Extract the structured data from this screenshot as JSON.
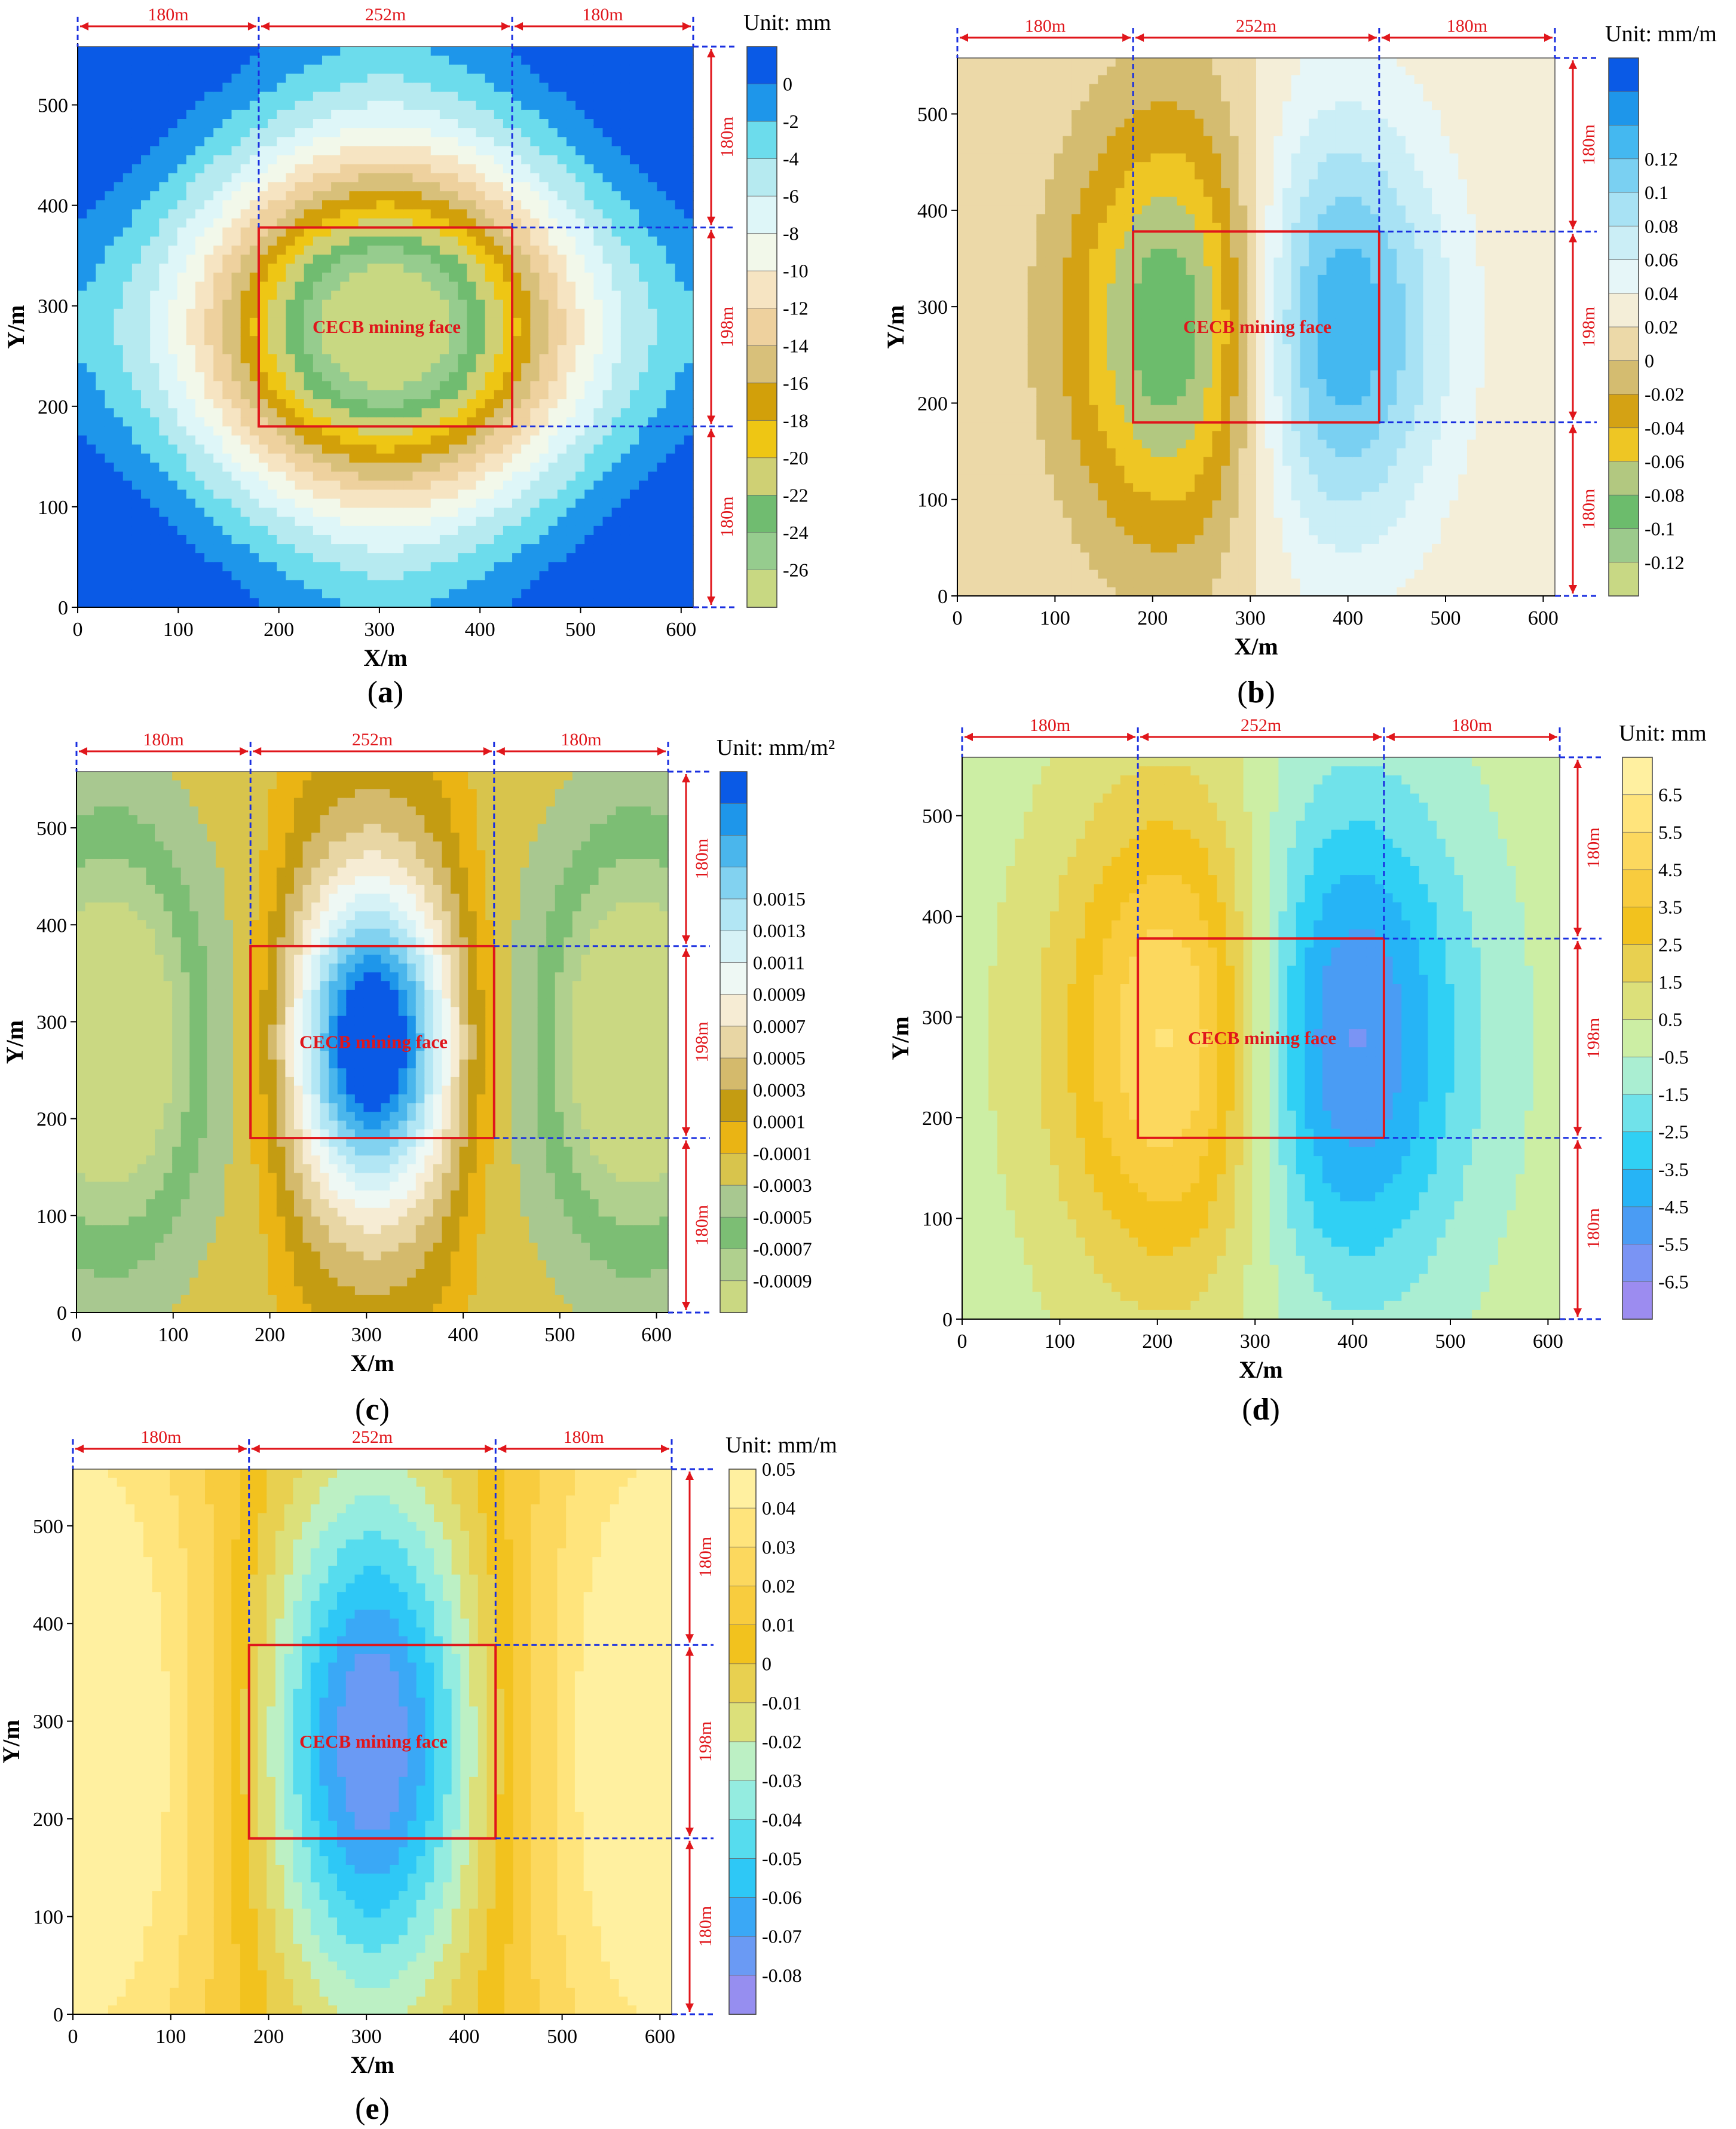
{
  "chart_data": [
    {
      "id": "a",
      "type": "heatmap",
      "caption": "a",
      "unit_label": "Unit: mm",
      "xlabel": "X/m",
      "ylabel": "Y/m",
      "xlim": [
        0,
        612
      ],
      "ylim": [
        0,
        558
      ],
      "xticks": [
        0,
        100,
        200,
        300,
        400,
        500,
        600
      ],
      "yticks": [
        0,
        100,
        200,
        300,
        400,
        500
      ],
      "mining_face": {
        "label": "CECB mining face",
        "x": [
          180,
          432
        ],
        "y": [
          180,
          378
        ]
      },
      "dims_top": [
        "180m",
        "252m",
        "180m"
      ],
      "dims_right": [
        "180m",
        "198m",
        "180m"
      ],
      "colorbar": {
        "labels": [
          "0",
          "-2",
          "-4",
          "-6",
          "-8",
          "-10",
          "-12",
          "-14",
          "-16",
          "-18",
          "-20",
          "-22",
          "-24",
          "-26"
        ],
        "colors": [
          "#0a5ae6",
          "#1e96ea",
          "#6cdcec",
          "#b6eaf0",
          "#def6f8",
          "#f2f8ea",
          "#f6e4c2",
          "#eed19e",
          "#d8c07a",
          "#d2a00a",
          "#eec614",
          "#cfd074",
          "#70bc70",
          "#96cc8e",
          "#c8d882"
        ]
      },
      "field": {
        "kind": "bowl",
        "min": -26,
        "max": 1,
        "cx": 306,
        "cy": 279,
        "rx": 200,
        "ry": 170
      }
    },
    {
      "id": "b",
      "type": "heatmap",
      "caption": "b",
      "unit_label": "Unit: mm/m",
      "xlabel": "X/m",
      "ylabel": "Y/m",
      "xlim": [
        0,
        612
      ],
      "ylim": [
        0,
        558
      ],
      "xticks": [
        0,
        100,
        200,
        300,
        400,
        500,
        600
      ],
      "yticks": [
        0,
        100,
        200,
        300,
        400,
        500
      ],
      "mining_face": {
        "label": "CECB mining face",
        "x": [
          180,
          432
        ],
        "y": [
          180,
          378
        ]
      },
      "dims_top": [
        "180m",
        "252m",
        "180m"
      ],
      "dims_right": [
        "180m",
        "198m",
        "180m"
      ],
      "colorbar": {
        "labels": [
          "0.12",
          "0.1",
          "0.08",
          "0.06",
          "0.04",
          "0.02",
          "0",
          "-0.02",
          "-0.04",
          "-0.06",
          "-0.08",
          "-0.1",
          "-0.12"
        ],
        "colors": [
          "#0a5ae6",
          "#1e96ea",
          "#44b8f0",
          "#7ad0f2",
          "#a8e2f4",
          "#cbeef6",
          "#e6f6f8",
          "#f4eed8",
          "#ecd9a8",
          "#d4bc70",
          "#d4a214",
          "#eec624",
          "#b2c880",
          "#6cbc6c",
          "#9cca8c",
          "#c8d884"
        ]
      },
      "field": {
        "kind": "dipole",
        "min": -0.12,
        "max": 0.12,
        "cx": 306,
        "cy": 279,
        "sx": 100,
        "sy": 160,
        "d": 130
      }
    },
    {
      "id": "c",
      "type": "heatmap",
      "caption": "c",
      "unit_label": "Unit: mm/m²",
      "xlabel": "X/m",
      "ylabel": "Y/m",
      "xlim": [
        0,
        612
      ],
      "ylim": [
        0,
        558
      ],
      "xticks": [
        0,
        100,
        200,
        300,
        400,
        500,
        600
      ],
      "yticks": [
        0,
        100,
        200,
        300,
        400,
        500
      ],
      "mining_face": {
        "label": "CECB mining face",
        "x": [
          180,
          432
        ],
        "y": [
          180,
          378
        ]
      },
      "dims_top": [
        "180m",
        "252m",
        "180m"
      ],
      "dims_right": [
        "180m",
        "198m",
        "180m"
      ],
      "colorbar": {
        "labels": [
          "0.0015",
          "0.0013",
          "0.0011",
          "0.0009",
          "0.0007",
          "0.0005",
          "0.0003",
          "0.0001",
          "-0.0001",
          "-0.0003",
          "-0.0005",
          "-0.0007",
          "-0.0009"
        ],
        "colors": [
          "#0a5ae6",
          "#1e96ea",
          "#4ab6ec",
          "#82d2f0",
          "#b2e6f4",
          "#d6f2f6",
          "#eef8f4",
          "#f6ecd4",
          "#e8d6a4",
          "#d4ba6c",
          "#c49c12",
          "#eab414",
          "#d8c44c",
          "#a8c890",
          "#7cbe74",
          "#b0d08e",
          "#cad882"
        ]
      },
      "field": {
        "kind": "curvature",
        "min": -0.0009,
        "max": 0.0017,
        "cx": 306,
        "cy": 279
      }
    },
    {
      "id": "d",
      "type": "heatmap",
      "caption": "d",
      "unit_label": "Unit: mm",
      "xlabel": "X/m",
      "ylabel": "Y/m",
      "xlim": [
        0,
        612
      ],
      "ylim": [
        0,
        558
      ],
      "xticks": [
        0,
        100,
        200,
        300,
        400,
        500,
        600
      ],
      "yticks": [
        0,
        100,
        200,
        300,
        400,
        500
      ],
      "mining_face": {
        "label": "CECB mining face",
        "x": [
          180,
          432
        ],
        "y": [
          180,
          378
        ]
      },
      "dims_top": [
        "180m",
        "252m",
        "180m"
      ],
      "dims_right": [
        "180m",
        "198m",
        "180m"
      ],
      "colorbar": {
        "labels": [
          "6.5",
          "5.5",
          "4.5",
          "3.5",
          "2.5",
          "1.5",
          "0.5",
          "-0.5",
          "-1.5",
          "-2.5",
          "-3.5",
          "-4.5",
          "-5.5",
          "-6.5"
        ],
        "colors": [
          "#fff0a0",
          "#ffe47c",
          "#fcd85e",
          "#f8cc3e",
          "#f2c21e",
          "#e8d050",
          "#dce07a",
          "#cceea4",
          "#aaeed2",
          "#70e2ea",
          "#30d0f4",
          "#26b4f6",
          "#4a9cf4",
          "#7a94f4",
          "#9c8cf0"
        ]
      },
      "field": {
        "kind": "dipole",
        "min": -6.5,
        "max": 6.5,
        "cx": 306,
        "cy": 279,
        "sx": 110,
        "sy": 170,
        "d": 135,
        "invert": true
      }
    },
    {
      "id": "e",
      "type": "heatmap",
      "caption": "e",
      "unit_label": "Unit: mm/m",
      "xlabel": "X/m",
      "ylabel": "Y/m",
      "xlim": [
        0,
        612
      ],
      "ylim": [
        0,
        558
      ],
      "xticks": [
        0,
        100,
        200,
        300,
        400,
        500,
        600
      ],
      "yticks": [
        0,
        100,
        200,
        300,
        400,
        500
      ],
      "mining_face": {
        "label": "CECB mining face",
        "x": [
          180,
          432
        ],
        "y": [
          180,
          378
        ]
      },
      "dims_top": [
        "180m",
        "252m",
        "180m"
      ],
      "dims_right": [
        "180m",
        "198m",
        "180m"
      ],
      "colorbar": {
        "labels": [
          "0.05",
          "0.04",
          "0.03",
          "0.02",
          "0.01",
          "0",
          "-0.01",
          "-0.02",
          "-0.03",
          "-0.04",
          "-0.05",
          "-0.06",
          "-0.07",
          "-0.08"
        ],
        "colors": [
          "#fff0a0",
          "#ffe47c",
          "#fcd85e",
          "#f8cc3e",
          "#f2c21e",
          "#e8d050",
          "#dce07a",
          "#bcf0c4",
          "#94ece0",
          "#56dcee",
          "#2ec8f6",
          "#3aa8f6",
          "#6a9af4",
          "#968ef0"
        ]
      },
      "field": {
        "kind": "strain",
        "min": -0.085,
        "max": 0.055,
        "cx": 306,
        "cy": 279
      }
    }
  ]
}
